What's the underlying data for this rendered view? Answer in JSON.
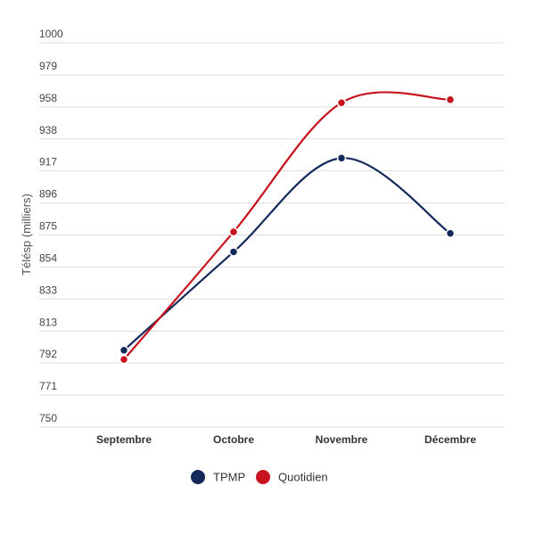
{
  "chart_data": {
    "type": "line",
    "categories": [
      "Septembre",
      "Octobre",
      "Novembre",
      "Décembre"
    ],
    "series": [
      {
        "name": "TPMP",
        "color": "#14285a",
        "values": [
          800,
          864,
          925,
          876
        ]
      },
      {
        "name": "Quotidien",
        "color": "#c8141e",
        "values": [
          794,
          877,
          961,
          963
        ]
      }
    ],
    "ylabel": "Télésp (milliers)",
    "xlabel": "",
    "ylim": [
      750,
      1000
    ],
    "yticks": [
      "750",
      "771",
      "792",
      "813",
      "833",
      "854",
      "875",
      "896",
      "917",
      "938",
      "958",
      "979",
      "1000"
    ],
    "grid": true,
    "legend": "bottom-center"
  }
}
